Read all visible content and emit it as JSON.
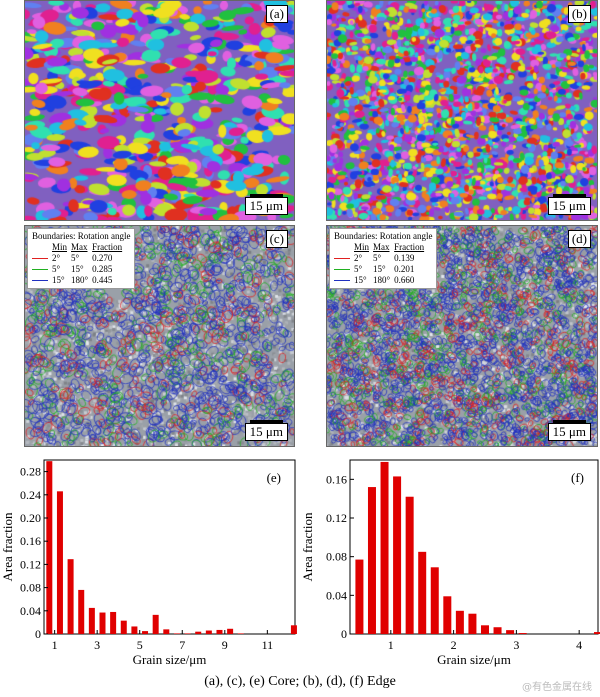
{
  "panels": {
    "a": {
      "label": "(a)",
      "scale": "15 μm"
    },
    "b": {
      "label": "(b)",
      "scale": "15 μm"
    },
    "c": {
      "label": "(c)",
      "scale": "15 μm",
      "legend": {
        "title": "Boundaries: Rotation angle",
        "headers": [
          "Min",
          "Max",
          "Fraction"
        ],
        "rows": [
          {
            "min": "2°",
            "max": "5°",
            "fraction": "0.270",
            "color": "#e02020"
          },
          {
            "min": "5°",
            "max": "15°",
            "fraction": "0.285",
            "color": "#20b020"
          },
          {
            "min": "15°",
            "max": "180°",
            "fraction": "0.445",
            "color": "#2030c0"
          }
        ]
      }
    },
    "d": {
      "label": "(d)",
      "scale": "15 μm",
      "legend": {
        "title": "Boundaries: Rotation angle",
        "headers": [
          "Min",
          "Max",
          "Fraction"
        ],
        "rows": [
          {
            "min": "2°",
            "max": "5°",
            "fraction": "0.139",
            "color": "#e02020"
          },
          {
            "min": "5°",
            "max": "15°",
            "fraction": "0.201",
            "color": "#20b020"
          },
          {
            "min": "15°",
            "max": "180°",
            "fraction": "0.660",
            "color": "#2030c0"
          }
        ]
      }
    }
  },
  "chart_data": [
    {
      "type": "bar",
      "panel": "(e)",
      "bar_color": "#e00000",
      "xlabel": "Grain size/μm",
      "ylabel": "Area fraction",
      "xlim": [
        0.5,
        12.3
      ],
      "ylim": [
        0,
        0.3
      ],
      "xticks": [
        1,
        3,
        5,
        7,
        9,
        11
      ],
      "yticks": [
        0,
        0.04,
        0.08,
        0.12,
        0.16,
        0.2,
        0.24,
        0.28
      ],
      "x": [
        0.75,
        1.25,
        1.75,
        2.25,
        2.75,
        3.25,
        3.75,
        4.25,
        4.75,
        5.25,
        5.75,
        6.25,
        6.75,
        7.25,
        7.75,
        8.25,
        8.75,
        9.25,
        9.75,
        10.25,
        10.75,
        11.25,
        11.75,
        12.25
      ],
      "values": [
        0.298,
        0.246,
        0.129,
        0.076,
        0.045,
        0.037,
        0.038,
        0.023,
        0.013,
        0.005,
        0.033,
        0.008,
        0.001,
        0.001,
        0.004,
        0.006,
        0.007,
        0.009,
        0.001,
        0.0,
        0.0,
        0.0,
        0.0,
        0.015
      ]
    },
    {
      "type": "bar",
      "panel": "(f)",
      "bar_color": "#e00000",
      "xlabel": "Grain size/μm",
      "ylabel": "Area fraction",
      "xlim": [
        0.35,
        4.3
      ],
      "ylim": [
        0,
        0.18
      ],
      "xticks": [
        1,
        2,
        3,
        4
      ],
      "yticks": [
        0,
        0.04,
        0.08,
        0.12,
        0.16
      ],
      "x": [
        0.5,
        0.7,
        0.9,
        1.1,
        1.3,
        1.5,
        1.7,
        1.9,
        2.1,
        2.3,
        2.5,
        2.7,
        2.9,
        3.1,
        3.3,
        4.3
      ],
      "values": [
        0.077,
        0.152,
        0.178,
        0.163,
        0.142,
        0.085,
        0.069,
        0.039,
        0.024,
        0.021,
        0.009,
        0.007,
        0.004,
        0.001,
        0.0,
        0.002
      ]
    }
  ],
  "caption": "(a), (c), (e) Core; (b), (d), (f) Edge",
  "watermark": "@有色金属在线"
}
